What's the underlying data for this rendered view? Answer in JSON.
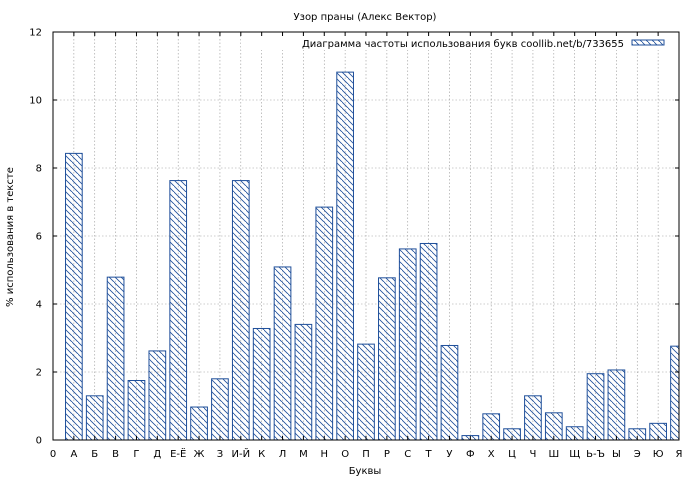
{
  "chart_data": {
    "type": "bar",
    "title": "Узор праны (Алекс Вектор)",
    "xlabel": "Буквы",
    "ylabel": "% использования в тексте",
    "ylim": [
      0,
      12
    ],
    "yticks": [
      0,
      2,
      4,
      6,
      8,
      10,
      12
    ],
    "xticks": [
      "0",
      "А",
      "Б",
      "В",
      "Г",
      "Д",
      "Е-Ё",
      "Ж",
      "З",
      "И-Й",
      "К",
      "Л",
      "М",
      "Н",
      "О",
      "П",
      "Р",
      "С",
      "Т",
      "У",
      "Ф",
      "Х",
      "Ц",
      "Ч",
      "Ш",
      "Щ",
      "Ь-Ъ",
      "Ы",
      "Э",
      "Ю",
      "Я"
    ],
    "categories": [
      "А",
      "Б",
      "В",
      "Г",
      "Д",
      "Е-Ё",
      "Ж",
      "З",
      "И-Й",
      "К",
      "Л",
      "М",
      "Н",
      "О",
      "П",
      "Р",
      "С",
      "Т",
      "У",
      "Ф",
      "Х",
      "Ц",
      "Ч",
      "Ш",
      "Щ",
      "Ь-Ъ",
      "Ы",
      "Э",
      "Ю",
      "Я"
    ],
    "series": [
      {
        "name": "Диаграмма частоты использования букв coollib.net/b/733655",
        "values": [
          8.43,
          1.3,
          4.79,
          1.75,
          2.62,
          7.63,
          0.97,
          1.8,
          7.63,
          3.28,
          5.09,
          3.4,
          6.85,
          10.82,
          2.82,
          4.77,
          5.62,
          5.78,
          2.78,
          0.13,
          0.77,
          0.33,
          1.3,
          0.8,
          0.39,
          1.95,
          2.06,
          0.33,
          0.49,
          2.76
        ]
      }
    ],
    "legend_position": "top-right",
    "grid": true,
    "colors": {
      "bar_edge": "#1f4f9a",
      "bar_fill": "#ffffff",
      "hatch": "#1f4f9a",
      "grid": "#999999",
      "axis": "#000000"
    }
  }
}
